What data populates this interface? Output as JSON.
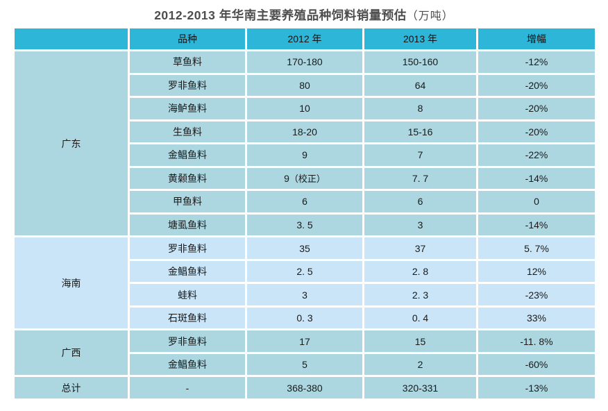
{
  "title": {
    "main": "2012-2013 年华南主要养殖品种饲料销量预估",
    "unit": "（万吨）"
  },
  "colors": {
    "header_bg": "#2eb6d8",
    "row_dark": "#acd6e0",
    "row_light": "#c9e5f7",
    "border": "#ffffff",
    "title_text": "#4d4d4d",
    "header_text": "#111111",
    "cell_text": "#1a1a1a"
  },
  "chart_data": {
    "type": "table",
    "title": "2012-2013 年华南主要养殖品种饲料销量预估（万吨）",
    "columns": [
      "",
      "品种",
      "2012 年",
      "2013 年",
      "增幅"
    ],
    "groups": [
      {
        "region": "广东",
        "shade": "dark",
        "rows": [
          {
            "species": "草鱼料",
            "y2012": "170-180",
            "y2013": "150-160",
            "change": "-12%"
          },
          {
            "species": "罗非鱼料",
            "y2012": "80",
            "y2013": "64",
            "change": "-20%"
          },
          {
            "species": "海鲈鱼料",
            "y2012": "10",
            "y2013": "8",
            "change": "-20%"
          },
          {
            "species": "生鱼料",
            "y2012": "18-20",
            "y2013": "15-16",
            "change": "-20%"
          },
          {
            "species": "金鲳鱼料",
            "y2012": "9",
            "y2013": "7",
            "change": "-22%"
          },
          {
            "species": "黄颡鱼料",
            "y2012": "9",
            "y2012_note": "（校正）",
            "y2013": "7. 7",
            "change": "-14%"
          },
          {
            "species": "甲鱼料",
            "y2012": "6",
            "y2013": "6",
            "change": "0"
          },
          {
            "species": "塘虱鱼料",
            "y2012": "3. 5",
            "y2013": "3",
            "change": "-14%"
          }
        ]
      },
      {
        "region": "海南",
        "shade": "light",
        "rows": [
          {
            "species": "罗非鱼料",
            "y2012": "35",
            "y2013": "37",
            "change": "5. 7%"
          },
          {
            "species": "金鲳鱼料",
            "y2012": "2. 5",
            "y2013": "2. 8",
            "change": "12%"
          },
          {
            "species": "蛙料",
            "y2012": "3",
            "y2013": "2. 3",
            "change": "-23%"
          },
          {
            "species": "石斑鱼料",
            "y2012": "0. 3",
            "y2013": "0. 4",
            "change": "33%"
          }
        ]
      },
      {
        "region": "广西",
        "shade": "dark",
        "rows": [
          {
            "species": "罗非鱼料",
            "y2012": "17",
            "y2013": "15",
            "change": "-11. 8%"
          },
          {
            "species": "金鲳鱼料",
            "y2012": "5",
            "y2013": "2",
            "change": "-60%"
          }
        ]
      },
      {
        "region": "总计",
        "shade": "dark",
        "rows": [
          {
            "species": "-",
            "y2012": "368-380",
            "y2013": "320-331",
            "change": "-13%"
          }
        ]
      }
    ]
  }
}
